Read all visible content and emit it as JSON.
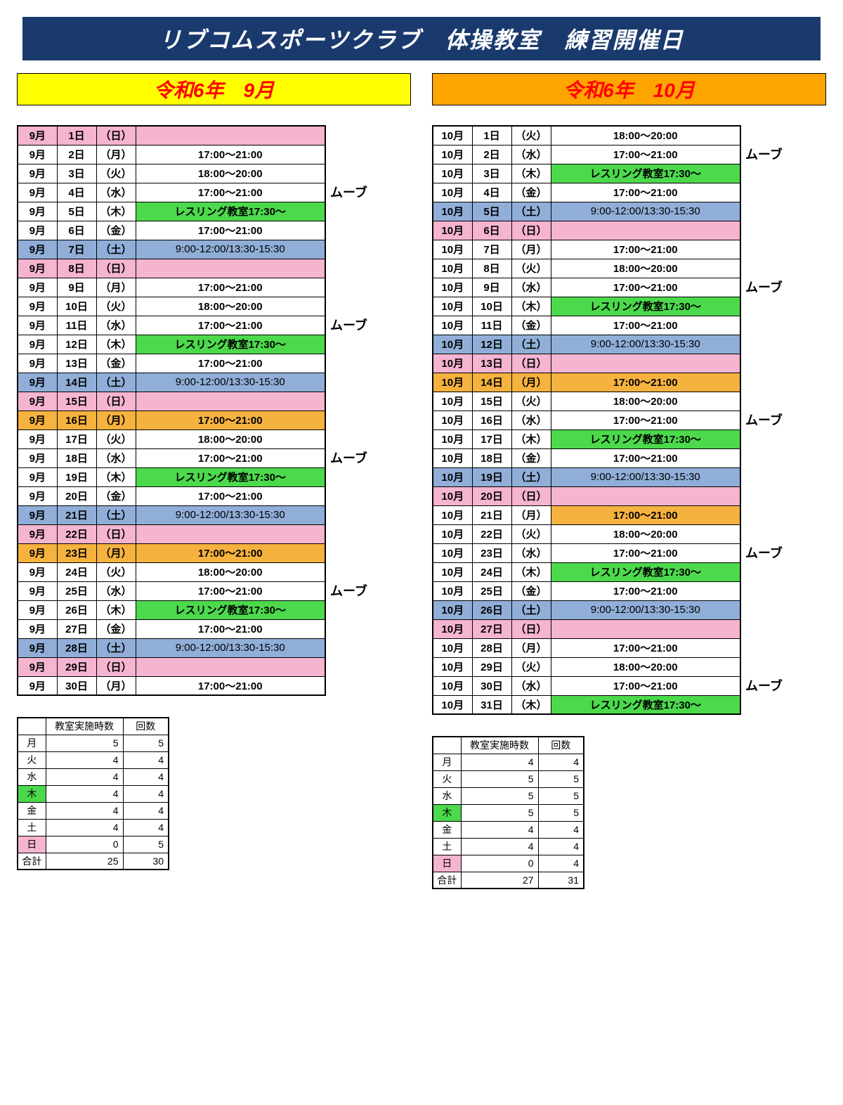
{
  "colors": {
    "titleBg": "#1a3a6e",
    "titleText": "#ffffff",
    "septHeaderBg": "#ffff00",
    "septHeaderText": "#ff0000",
    "octHeaderBg": "#ffa500",
    "octHeaderText": "#ff0000",
    "pink": "#f5b4cf",
    "green": "#4cd94c",
    "blue": "#90aed8",
    "orange": "#f5b23e",
    "white": "#ffffff"
  },
  "title": "リブコムスポーツクラブ　体操教室　練習開催日",
  "sideLabel": "ムーブ",
  "months": [
    {
      "headerText": "令和6年　9月",
      "headerBgKey": "septHeaderBg",
      "headerTextKey": "septHeaderText",
      "sideLabelRows": [
        3,
        10,
        17,
        24
      ],
      "rows": [
        {
          "m": "9月",
          "d": "1日",
          "w": "（日）",
          "t": "",
          "bg": "pink"
        },
        {
          "m": "9月",
          "d": "2日",
          "w": "（月）",
          "t": "17:00～21:00",
          "bg": "white"
        },
        {
          "m": "9月",
          "d": "3日",
          "w": "（火）",
          "t": "18:00～20:00",
          "bg": "white"
        },
        {
          "m": "9月",
          "d": "4日",
          "w": "（水）",
          "t": "17:00～21:00",
          "bg": "white"
        },
        {
          "m": "9月",
          "d": "5日",
          "w": "（木）",
          "t": "レスリング教室17:30～",
          "bg": "white",
          "tbg": "green"
        },
        {
          "m": "9月",
          "d": "6日",
          "w": "（金）",
          "t": "17:00～21:00",
          "bg": "white"
        },
        {
          "m": "9月",
          "d": "7日",
          "w": "（土）",
          "t": "9:00-12:00/13:30-15:30",
          "bg": "blue",
          "sat": true
        },
        {
          "m": "9月",
          "d": "8日",
          "w": "（日）",
          "t": "",
          "bg": "pink"
        },
        {
          "m": "9月",
          "d": "9日",
          "w": "（月）",
          "t": "17:00～21:00",
          "bg": "white"
        },
        {
          "m": "9月",
          "d": "10日",
          "w": "（火）",
          "t": "18:00～20:00",
          "bg": "white"
        },
        {
          "m": "9月",
          "d": "11日",
          "w": "（水）",
          "t": "17:00～21:00",
          "bg": "white"
        },
        {
          "m": "9月",
          "d": "12日",
          "w": "（木）",
          "t": "レスリング教室17:30～",
          "bg": "white",
          "tbg": "green"
        },
        {
          "m": "9月",
          "d": "13日",
          "w": "（金）",
          "t": "17:00～21:00",
          "bg": "white"
        },
        {
          "m": "9月",
          "d": "14日",
          "w": "（土）",
          "t": "9:00-12:00/13:30-15:30",
          "bg": "blue",
          "sat": true
        },
        {
          "m": "9月",
          "d": "15日",
          "w": "（日）",
          "t": "",
          "bg": "pink"
        },
        {
          "m": "9月",
          "d": "16日",
          "w": "（月）",
          "t": "17:00～21:00",
          "bg": "orange"
        },
        {
          "m": "9月",
          "d": "17日",
          "w": "（火）",
          "t": "18:00～20:00",
          "bg": "white"
        },
        {
          "m": "9月",
          "d": "18日",
          "w": "（水）",
          "t": "17:00～21:00",
          "bg": "white"
        },
        {
          "m": "9月",
          "d": "19日",
          "w": "（木）",
          "t": "レスリング教室17:30～",
          "bg": "white",
          "tbg": "green"
        },
        {
          "m": "9月",
          "d": "20日",
          "w": "（金）",
          "t": "17:00～21:00",
          "bg": "white"
        },
        {
          "m": "9月",
          "d": "21日",
          "w": "（土）",
          "t": "9:00-12:00/13:30-15:30",
          "bg": "blue",
          "sat": true
        },
        {
          "m": "9月",
          "d": "22日",
          "w": "（日）",
          "t": "",
          "bg": "pink"
        },
        {
          "m": "9月",
          "d": "23日",
          "w": "（月）",
          "t": "17:00～21:00",
          "bg": "orange"
        },
        {
          "m": "9月",
          "d": "24日",
          "w": "（火）",
          "t": "18:00～20:00",
          "bg": "white"
        },
        {
          "m": "9月",
          "d": "25日",
          "w": "（水）",
          "t": "17:00～21:00",
          "bg": "white"
        },
        {
          "m": "9月",
          "d": "26日",
          "w": "（木）",
          "t": "レスリング教室17:30～",
          "bg": "white",
          "tbg": "green"
        },
        {
          "m": "9月",
          "d": "27日",
          "w": "（金）",
          "t": "17:00～21:00",
          "bg": "white"
        },
        {
          "m": "9月",
          "d": "28日",
          "w": "（土）",
          "t": "9:00-12:00/13:30-15:30",
          "bg": "blue",
          "sat": true
        },
        {
          "m": "9月",
          "d": "29日",
          "w": "（日）",
          "t": "",
          "bg": "pink"
        },
        {
          "m": "9月",
          "d": "30日",
          "w": "（月）",
          "t": "17:00～21:00",
          "bg": "white"
        }
      ],
      "summary": {
        "headers": [
          "教室実施時数",
          "回数"
        ],
        "rows": [
          {
            "dw": "月",
            "hours": "5",
            "count": "5",
            "bg": "white"
          },
          {
            "dw": "火",
            "hours": "4",
            "count": "4",
            "bg": "white"
          },
          {
            "dw": "水",
            "hours": "4",
            "count": "4",
            "bg": "white"
          },
          {
            "dw": "木",
            "hours": "4",
            "count": "4",
            "bg": "green"
          },
          {
            "dw": "金",
            "hours": "4",
            "count": "4",
            "bg": "white"
          },
          {
            "dw": "土",
            "hours": "4",
            "count": "4",
            "bg": "white"
          },
          {
            "dw": "日",
            "hours": "0",
            "count": "5",
            "bg": "pink"
          }
        ],
        "totalLabel": "合計",
        "totalHours": "25",
        "totalCount": "30"
      }
    },
    {
      "headerText": "令和6年　10月",
      "headerBgKey": "octHeaderBg",
      "headerTextKey": "octHeaderText",
      "sideLabelRows": [
        1,
        8,
        15,
        22,
        29
      ],
      "rows": [
        {
          "m": "10月",
          "d": "1日",
          "w": "（火）",
          "t": "18:00～20:00",
          "bg": "white"
        },
        {
          "m": "10月",
          "d": "2日",
          "w": "（水）",
          "t": "17:00～21:00",
          "bg": "white"
        },
        {
          "m": "10月",
          "d": "3日",
          "w": "（木）",
          "t": "レスリング教室17:30～",
          "bg": "white",
          "tbg": "green"
        },
        {
          "m": "10月",
          "d": "4日",
          "w": "（金）",
          "t": "17:00～21:00",
          "bg": "white"
        },
        {
          "m": "10月",
          "d": "5日",
          "w": "（土）",
          "t": "9:00-12:00/13:30-15:30",
          "bg": "blue",
          "sat": true
        },
        {
          "m": "10月",
          "d": "6日",
          "w": "（日）",
          "t": "",
          "bg": "pink"
        },
        {
          "m": "10月",
          "d": "7日",
          "w": "（月）",
          "t": "17:00～21:00",
          "bg": "white"
        },
        {
          "m": "10月",
          "d": "8日",
          "w": "（火）",
          "t": "18:00～20:00",
          "bg": "white"
        },
        {
          "m": "10月",
          "d": "9日",
          "w": "（水）",
          "t": "17:00～21:00",
          "bg": "white"
        },
        {
          "m": "10月",
          "d": "10日",
          "w": "（木）",
          "t": "レスリング教室17:30～",
          "bg": "white",
          "tbg": "green"
        },
        {
          "m": "10月",
          "d": "11日",
          "w": "（金）",
          "t": "17:00～21:00",
          "bg": "white"
        },
        {
          "m": "10月",
          "d": "12日",
          "w": "（土）",
          "t": "9:00-12:00/13:30-15:30",
          "bg": "blue",
          "sat": true
        },
        {
          "m": "10月",
          "d": "13日",
          "w": "（日）",
          "t": "",
          "bg": "pink"
        },
        {
          "m": "10月",
          "d": "14日",
          "w": "（月）",
          "t": "17:00～21:00",
          "bg": "orange"
        },
        {
          "m": "10月",
          "d": "15日",
          "w": "（火）",
          "t": "18:00～20:00",
          "bg": "white"
        },
        {
          "m": "10月",
          "d": "16日",
          "w": "（水）",
          "t": "17:00～21:00",
          "bg": "white"
        },
        {
          "m": "10月",
          "d": "17日",
          "w": "（木）",
          "t": "レスリング教室17:30～",
          "bg": "white",
          "tbg": "green"
        },
        {
          "m": "10月",
          "d": "18日",
          "w": "（金）",
          "t": "17:00～21:00",
          "bg": "white"
        },
        {
          "m": "10月",
          "d": "19日",
          "w": "（土）",
          "t": "9:00-12:00/13:30-15:30",
          "bg": "blue",
          "sat": true
        },
        {
          "m": "10月",
          "d": "20日",
          "w": "（日）",
          "t": "",
          "bg": "pink"
        },
        {
          "m": "10月",
          "d": "21日",
          "w": "（月）",
          "t": "17:00～21:00",
          "bg": "white",
          "tbg": "orange"
        },
        {
          "m": "10月",
          "d": "22日",
          "w": "（火）",
          "t": "18:00～20:00",
          "bg": "white"
        },
        {
          "m": "10月",
          "d": "23日",
          "w": "（水）",
          "t": "17:00～21:00",
          "bg": "white"
        },
        {
          "m": "10月",
          "d": "24日",
          "w": "（木）",
          "t": "レスリング教室17:30～",
          "bg": "white",
          "tbg": "green"
        },
        {
          "m": "10月",
          "d": "25日",
          "w": "（金）",
          "t": "17:00～21:00",
          "bg": "white"
        },
        {
          "m": "10月",
          "d": "26日",
          "w": "（土）",
          "t": "9:00-12:00/13:30-15:30",
          "bg": "blue",
          "sat": true
        },
        {
          "m": "10月",
          "d": "27日",
          "w": "（日）",
          "t": "",
          "bg": "pink"
        },
        {
          "m": "10月",
          "d": "28日",
          "w": "（月）",
          "t": "17:00～21:00",
          "bg": "white"
        },
        {
          "m": "10月",
          "d": "29日",
          "w": "（火）",
          "t": "18:00～20:00",
          "bg": "white"
        },
        {
          "m": "10月",
          "d": "30日",
          "w": "（水）",
          "t": "17:00～21:00",
          "bg": "white"
        },
        {
          "m": "10月",
          "d": "31日",
          "w": "（木）",
          "t": "レスリング教室17:30～",
          "bg": "white",
          "tbg": "green"
        }
      ],
      "summary": {
        "headers": [
          "教室実施時数",
          "回数"
        ],
        "rows": [
          {
            "dw": "月",
            "hours": "4",
            "count": "4",
            "bg": "white"
          },
          {
            "dw": "火",
            "hours": "5",
            "count": "5",
            "bg": "white"
          },
          {
            "dw": "水",
            "hours": "5",
            "count": "5",
            "bg": "white"
          },
          {
            "dw": "木",
            "hours": "5",
            "count": "5",
            "bg": "green"
          },
          {
            "dw": "金",
            "hours": "4",
            "count": "4",
            "bg": "white"
          },
          {
            "dw": "土",
            "hours": "4",
            "count": "4",
            "bg": "white"
          },
          {
            "dw": "日",
            "hours": "0",
            "count": "4",
            "bg": "pink"
          }
        ],
        "totalLabel": "合計",
        "totalHours": "27",
        "totalCount": "31"
      }
    }
  ]
}
